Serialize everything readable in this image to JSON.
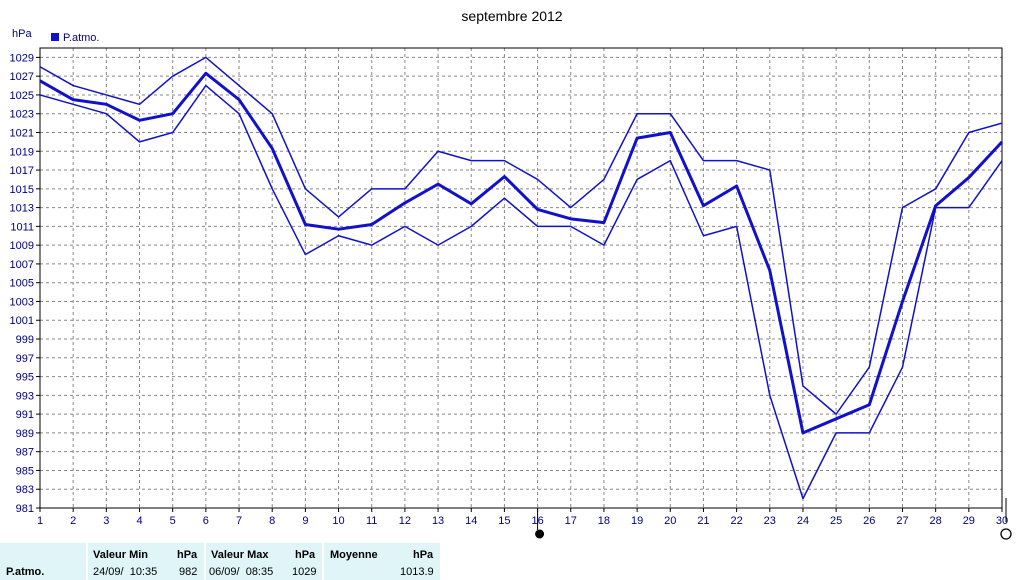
{
  "chart_data": {
    "type": "line",
    "title": "septembre 2012",
    "ylabel": "hPa",
    "legend": "P.atmo.",
    "legend_position": "top-left",
    "ylim": [
      981,
      1030
    ],
    "yticks": [
      981,
      983,
      985,
      987,
      989,
      991,
      993,
      995,
      997,
      999,
      1001,
      1003,
      1005,
      1007,
      1009,
      1011,
      1013,
      1015,
      1017,
      1019,
      1021,
      1023,
      1025,
      1027,
      1029
    ],
    "x": [
      1,
      2,
      3,
      4,
      5,
      6,
      7,
      8,
      9,
      10,
      11,
      12,
      13,
      14,
      15,
      16,
      17,
      18,
      19,
      20,
      21,
      22,
      23,
      24,
      25,
      26,
      27,
      28,
      29,
      30
    ],
    "grid": true,
    "series": [
      {
        "role": "max",
        "values": [
          1028,
          1026,
          1025,
          1024,
          1027,
          1029,
          1026,
          1023,
          1015,
          1012,
          1015,
          1015,
          1019,
          1018,
          1018,
          1016,
          1013,
          1016,
          1023,
          1023,
          1018,
          1018,
          1017,
          994,
          991,
          996,
          1013,
          1015,
          1021,
          1022
        ]
      },
      {
        "role": "mean",
        "values": [
          1026.5,
          1024.5,
          1024,
          1022.3,
          1023,
          1027.3,
          1024.5,
          1019.3,
          1011.2,
          1010.7,
          1011.2,
          1013.5,
          1015.5,
          1013.4,
          1016.3,
          1012.8,
          1011.8,
          1011.4,
          1020.4,
          1021,
          1013.2,
          1015.3,
          1006.3,
          989,
          990.5,
          992,
          1003,
          1013.2,
          1016.2,
          1020
        ]
      },
      {
        "role": "min",
        "values": [
          1025,
          1024,
          1023,
          1020,
          1021,
          1026,
          1023,
          1015,
          1008,
          1010,
          1009,
          1011,
          1009,
          1011,
          1014,
          1011,
          1011,
          1009,
          1016,
          1018,
          1010,
          1011,
          993,
          982,
          989,
          989,
          996,
          1013,
          1013,
          1018
        ]
      }
    ],
    "colors": {
      "line": "#1111cc",
      "axis_text": "#000080",
      "grid": "#888888"
    },
    "markers": {
      "full_moon_day": 16,
      "new_moon_day": 30
    }
  },
  "summary": {
    "parameter": "P.atmo.",
    "min_header": "Valeur Min",
    "min_unit": "hPa",
    "min_date": "24/09/  10:35",
    "min_value": "982",
    "max_header": "Valeur Max",
    "max_unit": "hPa",
    "max_date": "06/09/  08:35",
    "max_value": "1029",
    "mean_header": "Moyenne",
    "mean_unit": "hPa",
    "mean_value": "1013.9"
  }
}
